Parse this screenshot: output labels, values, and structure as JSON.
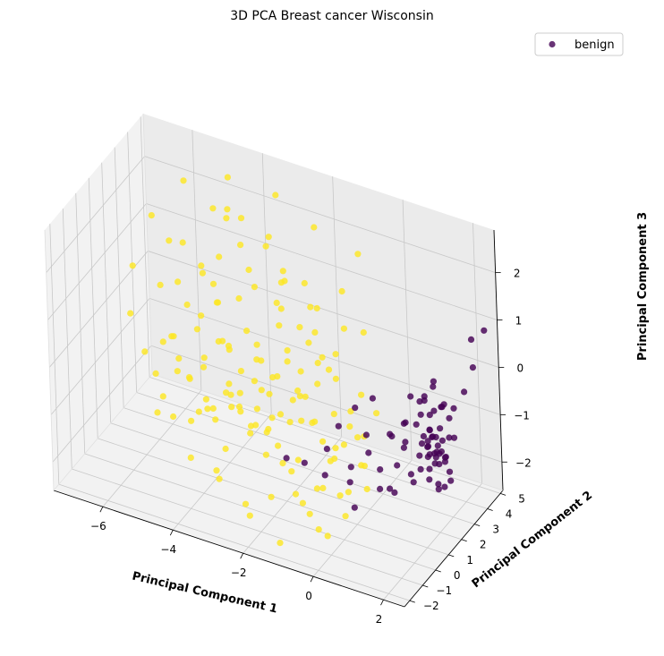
{
  "chart_data": {
    "type": "scatter",
    "title": "3D PCA Breast cancer Wisconsin",
    "xlabel": "Principal Component 1",
    "ylabel": "Principal Component 2",
    "zlabel": "Principal Component 3",
    "x_ticks": [
      "−6",
      "−4",
      "−2",
      "0",
      "2"
    ],
    "y_ticks": [
      "−2",
      "−1",
      "0",
      "1",
      "2",
      "3",
      "4",
      "5"
    ],
    "z_ticks": [
      "−2",
      "−1",
      "0",
      "1",
      "2"
    ],
    "legend": {
      "position": "top-right",
      "entries": [
        {
          "label": "benign",
          "color": "#440154"
        }
      ]
    },
    "grid": true,
    "projection": "3d",
    "series": [
      {
        "name": "benign",
        "color": "#440154",
        "points": [
          [
            1.6,
            2.9,
            0.2
          ],
          [
            1.8,
            3.1,
            -0.3
          ],
          [
            1.4,
            2.7,
            -0.1
          ],
          [
            1.9,
            3.2,
            -0.6
          ],
          [
            1.5,
            2.8,
            -0.5
          ],
          [
            1.7,
            3.0,
            -0.8
          ],
          [
            1.3,
            2.6,
            -0.2
          ],
          [
            2.0,
            3.3,
            -0.4
          ],
          [
            1.6,
            2.5,
            -0.7
          ],
          [
            1.8,
            2.9,
            -1.0
          ],
          [
            1.4,
            3.0,
            -0.9
          ],
          [
            1.7,
            2.7,
            -1.2
          ],
          [
            1.5,
            3.2,
            -1.1
          ],
          [
            1.9,
            2.8,
            -1.3
          ],
          [
            1.2,
            2.9,
            -0.6
          ],
          [
            1.6,
            3.4,
            -0.5
          ],
          [
            1.8,
            2.6,
            -1.4
          ],
          [
            1.4,
            2.4,
            -1.0
          ],
          [
            1.3,
            3.1,
            -1.2
          ],
          [
            2.1,
            3.0,
            -0.9
          ],
          [
            1.6,
            2.8,
            -1.5
          ],
          [
            1.7,
            3.3,
            -1.6
          ],
          [
            1.5,
            2.6,
            -1.8
          ],
          [
            1.9,
            3.1,
            -1.7
          ],
          [
            1.2,
            2.7,
            -1.4
          ],
          [
            1.8,
            2.5,
            -1.9
          ],
          [
            1.4,
            3.3,
            -1.5
          ],
          [
            1.6,
            3.0,
            -2.0
          ],
          [
            1.3,
            2.5,
            -1.6
          ],
          [
            2.0,
            2.9,
            -1.8
          ],
          [
            1.7,
            2.6,
            -0.3
          ],
          [
            1.5,
            3.1,
            0.0
          ],
          [
            1.9,
            2.7,
            -0.2
          ],
          [
            1.1,
            2.8,
            -0.8
          ],
          [
            1.8,
            3.4,
            -1.1
          ],
          [
            1.6,
            2.3,
            -1.2
          ],
          [
            1.4,
            2.9,
            -1.7
          ],
          [
            1.7,
            3.2,
            -2.1
          ],
          [
            1.2,
            3.2,
            -0.4
          ],
          [
            2.0,
            2.6,
            -1.2
          ],
          [
            0.9,
            2.4,
            -0.7
          ],
          [
            1.0,
            2.2,
            -1.0
          ],
          [
            0.8,
            2.6,
            -1.3
          ],
          [
            1.1,
            2.0,
            -0.5
          ],
          [
            0.7,
            2.3,
            -1.6
          ],
          [
            1.0,
            2.7,
            -0.2
          ],
          [
            0.6,
            2.1,
            -0.9
          ],
          [
            1.2,
            2.2,
            -1.8
          ],
          [
            0.9,
            2.8,
            -1.9
          ],
          [
            0.5,
            2.5,
            -1.1
          ],
          [
            1.5,
            2.7,
            -1.3
          ],
          [
            1.6,
            2.9,
            -1.4
          ],
          [
            1.4,
            2.8,
            -1.2
          ],
          [
            1.7,
            2.8,
            -1.1
          ],
          [
            1.5,
            2.9,
            -1.0
          ],
          [
            1.6,
            2.7,
            -0.9
          ],
          [
            1.8,
            2.8,
            -1.2
          ],
          [
            1.3,
            2.8,
            -1.0
          ],
          [
            1.7,
            2.9,
            -1.3
          ],
          [
            1.5,
            2.6,
            -1.1
          ],
          [
            2.2,
            3.6,
            -0.1
          ],
          [
            2.4,
            3.8,
            0.4
          ],
          [
            2.3,
            4.0,
            0.9
          ],
          [
            2.6,
            4.2,
            1.1
          ],
          [
            0.4,
            1.8,
            -1.6
          ],
          [
            0.2,
            1.5,
            -1.2
          ],
          [
            0.0,
            1.9,
            -1.0
          ],
          [
            -0.2,
            1.2,
            -1.5
          ],
          [
            0.3,
            2.0,
            -2.1
          ],
          [
            -0.4,
            1.6,
            -2.0
          ],
          [
            -0.6,
            1.4,
            -0.8
          ],
          [
            -0.3,
            1.9,
            -0.5
          ],
          [
            -0.8,
            1.0,
            -1.2
          ],
          [
            0.1,
            2.2,
            -0.3
          ],
          [
            -1.0,
            1.3,
            -1.9
          ],
          [
            -1.5,
            1.1,
            -1.7
          ],
          [
            0.6,
            2.3,
            -2.2
          ],
          [
            0.7,
            1.7,
            -1.9
          ],
          [
            -0.1,
            1.1,
            -2.3
          ],
          [
            -1.9,
            0.8,
            -1.6
          ]
        ]
      },
      {
        "name": "",
        "color": "#fde725",
        "points": [
          [
            -5.8,
            3.1,
            -1.2
          ],
          [
            -5.4,
            2.8,
            -1.4
          ],
          [
            -6.1,
            3.4,
            -0.9
          ],
          [
            -4.9,
            2.6,
            -1.0
          ],
          [
            -5.2,
            3.0,
            -0.4
          ],
          [
            -6.4,
            2.9,
            -1.6
          ],
          [
            -4.6,
            3.3,
            -0.6
          ],
          [
            -5.0,
            2.4,
            -1.9
          ],
          [
            -5.7,
            3.6,
            -0.2
          ],
          [
            -4.3,
            2.9,
            -1.3
          ],
          [
            -6.0,
            2.5,
            -0.7
          ],
          [
            -4.8,
            3.5,
            0.1
          ],
          [
            -5.5,
            2.2,
            -1.1
          ],
          [
            -4.1,
            3.1,
            -1.8
          ],
          [
            -6.3,
            3.2,
            0.2
          ],
          [
            -4.4,
            2.5,
            -0.3
          ],
          [
            -5.3,
            3.8,
            0.5
          ],
          [
            -3.9,
            2.8,
            -0.9
          ],
          [
            -5.9,
            2.1,
            -1.7
          ],
          [
            -4.7,
            2.2,
            -1.5
          ],
          [
            -3.6,
            3.0,
            -1.1
          ],
          [
            -5.1,
            3.2,
            0.9
          ],
          [
            -4.2,
            3.6,
            0.3
          ],
          [
            -3.8,
            2.4,
            -1.6
          ],
          [
            -5.6,
            2.7,
            0.6
          ],
          [
            -3.4,
            2.7,
            -0.5
          ],
          [
            -4.5,
            3.0,
            1.3
          ],
          [
            -6.2,
            3.7,
            1.0
          ],
          [
            -3.3,
            3.3,
            -1.4
          ],
          [
            -4.0,
            2.2,
            -0.2
          ],
          [
            -3.1,
            2.5,
            -1.9
          ],
          [
            -5.3,
            2.4,
            1.6
          ],
          [
            -3.7,
            3.5,
            0.7
          ],
          [
            -4.9,
            3.7,
            2.0
          ],
          [
            -2.9,
            2.9,
            -0.8
          ],
          [
            -4.3,
            2.0,
            1.1
          ],
          [
            -3.2,
            2.1,
            -1.3
          ],
          [
            -2.7,
            3.2,
            -0.3
          ],
          [
            -4.6,
            3.9,
            1.8
          ],
          [
            -3.5,
            2.6,
            1.4
          ],
          [
            -2.5,
            2.7,
            -1.6
          ],
          [
            -3.9,
            3.2,
            2.2
          ],
          [
            -2.8,
            2.3,
            -0.6
          ],
          [
            -3.0,
            3.7,
            0.9
          ],
          [
            -2.3,
            3.0,
            -1.1
          ],
          [
            -4.1,
            2.7,
            2.5
          ],
          [
            -2.6,
            2.0,
            -1.9
          ],
          [
            -3.4,
            3.9,
            1.7
          ],
          [
            -2.1,
            2.6,
            -0.4
          ],
          [
            -3.6,
            2.3,
            2.0
          ],
          [
            -2.4,
            3.4,
            0.2
          ],
          [
            -1.9,
            2.8,
            -1.5
          ],
          [
            -3.1,
            2.9,
            1.9
          ],
          [
            -2.2,
            2.2,
            -0.9
          ],
          [
            -1.7,
            3.2,
            -0.2
          ],
          [
            -2.9,
            3.6,
            1.2
          ],
          [
            -1.5,
            2.5,
            -1.7
          ],
          [
            -2.6,
            2.6,
            0.8
          ],
          [
            -1.8,
            2.1,
            -0.7
          ],
          [
            -2.0,
            3.7,
            0.6
          ],
          [
            -1.3,
            2.9,
            -1.2
          ],
          [
            -2.4,
            2.4,
            1.5
          ],
          [
            -1.6,
            3.4,
            -0.5
          ],
          [
            -1.1,
            2.3,
            -1.9
          ],
          [
            -2.1,
            3.1,
            1.3
          ],
          [
            -1.4,
            2.0,
            -0.3
          ],
          [
            -0.9,
            3.0,
            -1.4
          ],
          [
            -1.8,
            2.7,
            1.0
          ],
          [
            -1.2,
            3.6,
            0.4
          ],
          [
            -0.7,
            2.6,
            -0.9
          ],
          [
            -1.5,
            2.2,
            0.7
          ],
          [
            -0.8,
            3.3,
            -1.7
          ],
          [
            -1.0,
            2.4,
            0.3
          ],
          [
            -0.5,
            2.9,
            -0.6
          ],
          [
            -1.3,
            3.8,
            1.1
          ],
          [
            -0.3,
            2.5,
            -1.3
          ],
          [
            -0.9,
            2.1,
            -0.1
          ],
          [
            -0.6,
            3.5,
            0.5
          ],
          [
            -0.2,
            2.2,
            -1.8
          ],
          [
            0.0,
            2.7,
            -0.8
          ],
          [
            -5.0,
            1.8,
            -1.9
          ],
          [
            -4.4,
            1.5,
            -1.4
          ],
          [
            -3.8,
            1.2,
            -2.0
          ],
          [
            -4.8,
            1.3,
            -0.8
          ],
          [
            -3.2,
            1.6,
            -1.5
          ],
          [
            -2.6,
            1.1,
            -1.8
          ],
          [
            -4.0,
            0.9,
            -1.1
          ],
          [
            -2.0,
            1.4,
            -2.1
          ],
          [
            -3.4,
            0.7,
            -0.6
          ],
          [
            -1.6,
            0.9,
            -1.6
          ],
          [
            -2.8,
            0.5,
            -1.2
          ],
          [
            -1.2,
            1.2,
            -2.2
          ],
          [
            -2.2,
            0.3,
            -0.9
          ],
          [
            -0.8,
            0.6,
            -1.9
          ],
          [
            -1.7,
            0.0,
            -1.4
          ],
          [
            -0.4,
            0.2,
            -1.1
          ],
          [
            -1.2,
            -0.4,
            -1.8
          ],
          [
            0.0,
            -0.2,
            -1.6
          ],
          [
            -0.7,
            -0.7,
            -2.0
          ],
          [
            0.4,
            -0.6,
            -1.3
          ],
          [
            -2.5,
            -0.8,
            -2.2
          ],
          [
            -1.6,
            -1.2,
            -1.7
          ],
          [
            -0.3,
            -1.1,
            -2.1
          ],
          [
            0.6,
            -1.4,
            -1.5
          ],
          [
            -3.5,
            -0.3,
            -1.9
          ],
          [
            -4.5,
            0.4,
            -2.1
          ],
          [
            -5.2,
            1.0,
            -1.6
          ],
          [
            -6.0,
            1.9,
            -2.0
          ],
          [
            -3.0,
            -1.4,
            -1.6
          ],
          [
            -2.0,
            -1.8,
            -2.0
          ],
          [
            -0.5,
            -1.7,
            -1.4
          ],
          [
            0.3,
            -2.0,
            -1.8
          ],
          [
            -1.0,
            -2.2,
            -2.2
          ],
          [
            -4.2,
            2.4,
            -1.3
          ],
          [
            -3.6,
            1.9,
            -1.0
          ],
          [
            -2.9,
            1.7,
            -0.7
          ],
          [
            -2.3,
            1.5,
            -1.0
          ],
          [
            -1.9,
            1.8,
            -0.5
          ],
          [
            -3.0,
            2.0,
            -0.2
          ],
          [
            -4.6,
            1.9,
            -0.5
          ],
          [
            -5.5,
            2.0,
            -0.3
          ],
          [
            -6.5,
            2.4,
            -1.0
          ],
          [
            -6.8,
            2.2,
            -0.2
          ],
          [
            -7.0,
            3.0,
            0.5
          ],
          [
            -6.6,
            3.5,
            1.5
          ],
          [
            -5.8,
            3.9,
            2.3
          ],
          [
            -4.6,
            4.1,
            2.6
          ],
          [
            -3.2,
            4.0,
            2.6
          ],
          [
            -2.2,
            4.2,
            2.1
          ],
          [
            -1.0,
            4.3,
            1.8
          ],
          [
            -3.3,
            2.5,
            -0.1
          ],
          [
            -2.8,
            2.9,
            0.3
          ],
          [
            -3.7,
            2.8,
            0.0
          ],
          [
            -4.1,
            2.5,
            -0.4
          ],
          [
            -2.4,
            2.4,
            -0.2
          ],
          [
            -3.0,
            3.3,
            0.6
          ],
          [
            -4.5,
            2.8,
            0.4
          ],
          [
            -5.0,
            2.8,
            0.0
          ],
          [
            -2.0,
            3.0,
            0.1
          ],
          [
            -1.6,
            2.6,
            -0.1
          ],
          [
            -3.9,
            2.0,
            -1.4
          ],
          [
            -3.3,
            2.2,
            -1.7
          ],
          [
            -2.7,
            1.9,
            -1.3
          ],
          [
            -4.3,
            1.8,
            -1.7
          ],
          [
            -1.9,
            2.0,
            -1.2
          ],
          [
            -1.4,
            1.7,
            -1.0
          ],
          [
            -0.9,
            1.9,
            -1.5
          ],
          [
            -0.5,
            1.5,
            -1.2
          ],
          [
            -0.1,
            1.7,
            -1.6
          ],
          [
            0.2,
            1.3,
            -1.9
          ]
        ]
      }
    ]
  }
}
